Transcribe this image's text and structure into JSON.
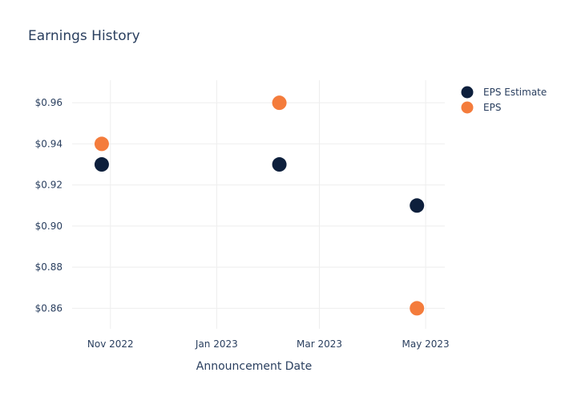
{
  "chart_data": {
    "type": "scatter",
    "title": "Earnings History",
    "xlabel": "Announcement Date",
    "ylabel": "",
    "x_ticks": [
      {
        "date": "2022-11-01",
        "label": "Nov 2022"
      },
      {
        "date": "2023-01-01",
        "label": "Jan 2023"
      },
      {
        "date": "2023-03-01",
        "label": "Mar 2023"
      },
      {
        "date": "2023-05-01",
        "label": "May 2023"
      }
    ],
    "xlim": [
      "2022-10-10",
      "2023-05-12"
    ],
    "y_ticks": [
      {
        "value": 0.86,
        "label": "$0.86"
      },
      {
        "value": 0.88,
        "label": "$0.88"
      },
      {
        "value": 0.9,
        "label": "$0.90"
      },
      {
        "value": 0.92,
        "label": "$0.92"
      },
      {
        "value": 0.94,
        "label": "$0.94"
      },
      {
        "value": 0.96,
        "label": "$0.96"
      }
    ],
    "ylim": [
      0.85,
      0.971
    ],
    "grid": true,
    "legend_position": "top-right",
    "series": [
      {
        "name": "EPS Estimate",
        "color": "#0d1f3c",
        "points": [
          {
            "x": "2022-10-27",
            "y": 0.93
          },
          {
            "x": "2023-02-06",
            "y": 0.93
          },
          {
            "x": "2023-04-26",
            "y": 0.91
          }
        ]
      },
      {
        "name": "EPS",
        "color": "#f47c3c",
        "points": [
          {
            "x": "2022-10-27",
            "y": 0.94
          },
          {
            "x": "2023-02-06",
            "y": 0.96
          },
          {
            "x": "2023-04-26",
            "y": 0.86
          }
        ]
      }
    ]
  }
}
